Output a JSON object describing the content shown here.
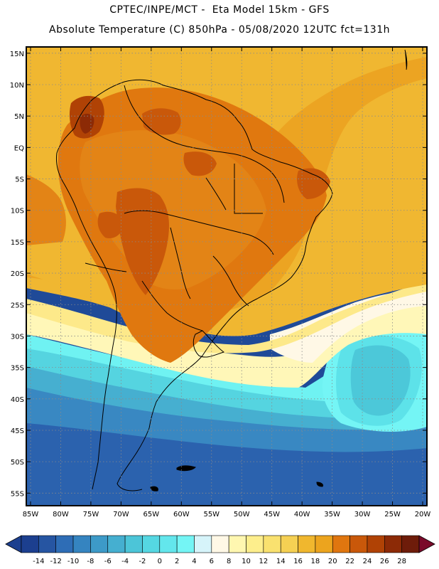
{
  "header": {
    "line1": "CPTEC/INPE/MCT -  Eta Model 15km - GFS",
    "line2": "Absolute Temperature (C) 850hPa - 05/08/2020 12UTC fct=131h"
  },
  "map": {
    "lat_labels": [
      "15N",
      "10N",
      "5N",
      "EQ",
      "5S",
      "10S",
      "15S",
      "20S",
      "25S",
      "30S",
      "35S",
      "40S",
      "45S",
      "50S",
      "55S"
    ],
    "lon_labels": [
      "85W",
      "80W",
      "75W",
      "70W",
      "65W",
      "60W",
      "55W",
      "50W",
      "45W",
      "40W",
      "35W",
      "30W",
      "25W",
      "20W"
    ],
    "lon_range": [
      -85,
      -20
    ],
    "lat_range": [
      -57,
      16
    ]
  },
  "colorbar": {
    "labels": [
      "-14",
      "-12",
      "-10",
      "-8",
      "-6",
      "-4",
      "-2",
      "0",
      "2",
      "4",
      "6",
      "8",
      "10",
      "12",
      "14",
      "16",
      "18",
      "20",
      "22",
      "24",
      "26",
      "28"
    ],
    "colors": [
      "#1c3f8f",
      "#2655a2",
      "#2e6db6",
      "#3584c0",
      "#3d9ac8",
      "#45afd0",
      "#4cc5d8",
      "#55d7e2",
      "#63e6ec",
      "#74f5f5",
      "#d6f4fa",
      "#fff8e6",
      "#fff7b0",
      "#fdee8c",
      "#f9e16f",
      "#f5d053",
      "#f0b72e",
      "#eca41e",
      "#e0760f",
      "#c9580a",
      "#b04205",
      "#8c2a06",
      "#6e1c0a"
    ]
  }
}
